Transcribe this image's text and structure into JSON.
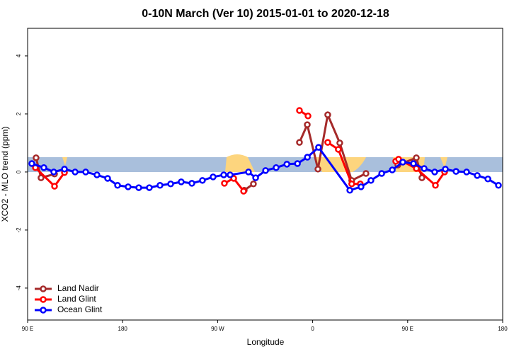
{
  "chart_data": {
    "type": "line",
    "title": "0-10N March (Ver 10)   2015-01-01 to 2020-12-18",
    "x_label": "Longitude",
    "y_label": "XCO2 - MLO trend (ppm)",
    "xlim": [
      90,
      540
    ],
    "ylim": [
      -5.1,
      4.95
    ],
    "xticks": [
      {
        "value": 90,
        "label": "90 E"
      },
      {
        "value": 180,
        "label": "180"
      },
      {
        "value": 270,
        "label": "90 W"
      },
      {
        "value": 360,
        "label": "0"
      },
      {
        "value": 450,
        "label": "90 E"
      },
      {
        "value": 540,
        "label": "180"
      }
    ],
    "yticks": [
      -4,
      -2,
      0,
      2,
      4
    ],
    "legend": "bottomleft",
    "series": [
      {
        "name": "Land Nadir",
        "color": "#a52a2a",
        "x": [
          98,
          102.7,
          115.5,
          null,
          295.2,
          303.9,
          null,
          347.5,
          354.9,
          365,
          374.3,
          385.7,
          397,
          410.5,
          null,
          440.7,
          458.2,
          463.5
        ],
        "values": [
          0.49,
          -0.2,
          -0.07,
          null,
          -0.63,
          -0.41,
          null,
          1.02,
          1.63,
          0.1,
          1.97,
          1.0,
          -0.29,
          -0.05,
          null,
          0.24,
          0.49,
          -0.2
        ]
      },
      {
        "name": "Land Glint",
        "color": "#ff0000",
        "x": [
          97.4,
          115.5,
          124.9,
          null,
          276.4,
          285.2,
          294.6,
          null,
          347.5,
          355.6,
          null,
          374.3,
          384.3,
          397,
          405.1,
          null,
          438.7,
          441.4,
          458.2,
          476.3,
          485
        ],
        "values": [
          0.15,
          -0.49,
          -0.02,
          null,
          -0.39,
          -0.22,
          -0.66,
          null,
          2.12,
          1.93,
          null,
          1.02,
          0.78,
          -0.41,
          -0.41,
          null,
          0.37,
          0.44,
          0.12,
          -0.46,
          0
        ]
      },
      {
        "name": "Ocean Glint",
        "color": "#0000ff",
        "x": [
          94,
          105.4,
          114.8,
          124.9,
          135,
          145,
          155.7,
          165.8,
          175.2,
          185.2,
          195.3,
          205.3,
          215.4,
          225.5,
          235.5,
          245.6,
          255.6,
          265.7,
          275.8,
          281.8,
          299.2,
          306,
          315.4,
          325.4,
          335.6,
          345.6,
          355,
          365.6,
          395.2,
          405.8,
          415.2,
          425.4,
          435.4,
          445.4,
          455.5,
          465.6,
          475.6,
          485.7,
          495.8,
          505.8,
          515.9,
          526,
          536
        ],
        "values": [
          0.29,
          0.15,
          0,
          0.1,
          0,
          0,
          -0.1,
          -0.22,
          -0.46,
          -0.51,
          -0.54,
          -0.54,
          -0.46,
          -0.41,
          -0.34,
          -0.39,
          -0.29,
          -0.17,
          -0.1,
          -0.1,
          0,
          -0.2,
          0.05,
          0.15,
          0.27,
          0.29,
          0.51,
          0.85,
          -0.63,
          -0.51,
          -0.29,
          -0.05,
          0.07,
          0.34,
          0.29,
          0.12,
          0,
          0.1,
          0.02,
          0,
          -0.12,
          -0.24,
          -0.46
        ]
      }
    ]
  }
}
